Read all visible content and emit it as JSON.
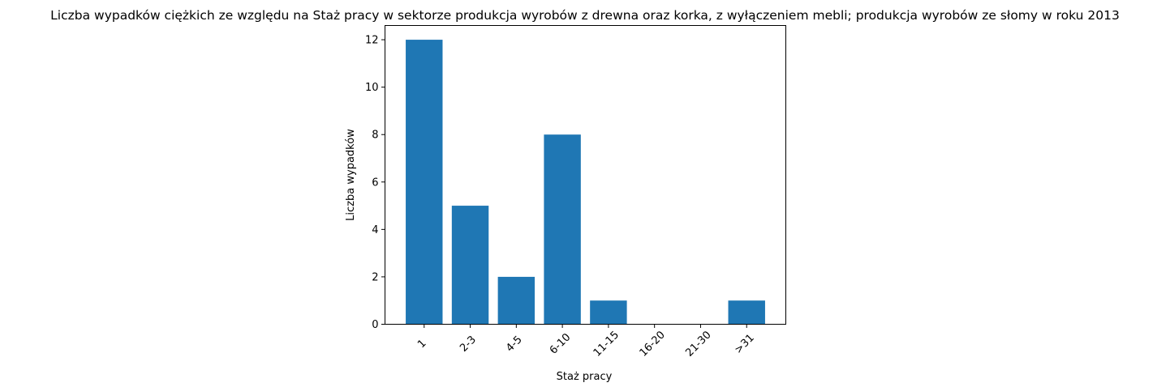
{
  "chart_data": {
    "type": "bar",
    "title": "Liczba wypadków ciężkich ze względu na Staż pracy w sektorze produkcja wyrobów z drewna oraz korka, z wyłączeniem mebli; produkcja wyrobów ze słomy w roku 2013",
    "xlabel": "Staż pracy",
    "ylabel": "Liczba wypadków",
    "categories": [
      "1",
      "2-3",
      "4-5",
      "6-10",
      "11-15",
      "16-20",
      "21-30",
      ">31"
    ],
    "values": [
      12,
      5,
      2,
      8,
      1,
      0,
      0,
      1
    ],
    "ylim": [
      0,
      12.6
    ],
    "yticks": [
      0,
      2,
      4,
      6,
      8,
      10,
      12
    ],
    "bar_color": "#1f77b4",
    "grid": false,
    "xtick_rotation": 45
  }
}
